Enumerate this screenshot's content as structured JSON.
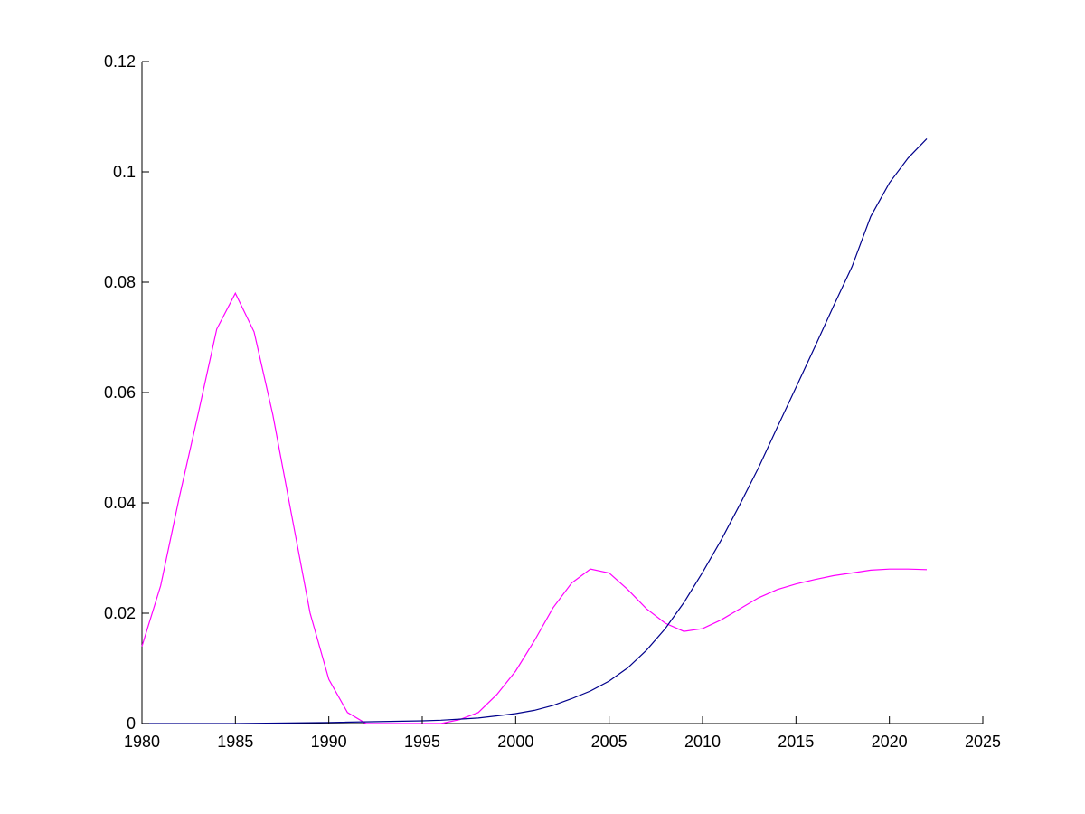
{
  "chart_data": {
    "type": "line",
    "title": "",
    "xlabel": "",
    "ylabel": "",
    "xlim": [
      1980,
      2025
    ],
    "ylim": [
      0,
      0.12
    ],
    "grid": false,
    "x_ticks": [
      "1980",
      "1985",
      "1990",
      "1995",
      "2000",
      "2005",
      "2010",
      "2015",
      "2020",
      "2025"
    ],
    "y_ticks": [
      "0",
      "0.02",
      "0.04",
      "0.06",
      "0.08",
      "0.1",
      "0.12"
    ],
    "x_tick_values": [
      1980,
      1985,
      1990,
      1995,
      2000,
      2005,
      2010,
      2015,
      2020,
      2025
    ],
    "y_tick_values": [
      0,
      0.02,
      0.04,
      0.06,
      0.08,
      0.1,
      0.12
    ],
    "series": [
      {
        "color": "#ff00ff",
        "x": [
          1980,
          1981,
          1982,
          1983,
          1984,
          1985,
          1986,
          1987,
          1988,
          1989,
          1990,
          1991,
          1992,
          1993,
          1994,
          1995,
          1996,
          1997,
          1998,
          1999,
          2000,
          2001,
          2002,
          2003,
          2004,
          2005,
          2006,
          2007,
          2008,
          2009,
          2010,
          2011,
          2012,
          2013,
          2014,
          2015,
          2016,
          2017,
          2018,
          2019,
          2020,
          2021,
          2022
        ],
        "y": [
          0.014,
          0.025,
          0.041,
          0.056,
          0.0715,
          0.078,
          0.071,
          0.056,
          0.038,
          0.02,
          0.008,
          0.002,
          0.0,
          0.0,
          0.0,
          0.0,
          0.0,
          0.0007,
          0.002,
          0.0053,
          0.0095,
          0.015,
          0.021,
          0.0255,
          0.028,
          0.0273,
          0.0243,
          0.0208,
          0.0182,
          0.0167,
          0.0172,
          0.0188,
          0.0208,
          0.0228,
          0.0243,
          0.0253,
          0.0261,
          0.0268,
          0.0273,
          0.0278,
          0.028,
          0.028,
          0.0279
        ]
      },
      {
        "color": "#00008b",
        "x": [
          1980,
          1985,
          1990,
          1995,
          1996,
          1997,
          1998,
          1999,
          2000,
          2001,
          2002,
          2003,
          2004,
          2005,
          2006,
          2007,
          2008,
          2009,
          2010,
          2011,
          2012,
          2013,
          2014,
          2015,
          2016,
          2017,
          2018,
          2019,
          2020,
          2021,
          2022
        ],
        "y": [
          0.0,
          0.0,
          0.0002,
          0.0005,
          0.0006,
          0.0008,
          0.001,
          0.0014,
          0.0018,
          0.0024,
          0.0033,
          0.0045,
          0.0059,
          0.0077,
          0.0101,
          0.0133,
          0.0172,
          0.0219,
          0.0274,
          0.0333,
          0.0397,
          0.0464,
          0.0537,
          0.0609,
          0.0682,
          0.0756,
          0.0828,
          0.0919,
          0.098,
          0.1025,
          0.106
        ]
      }
    ]
  }
}
